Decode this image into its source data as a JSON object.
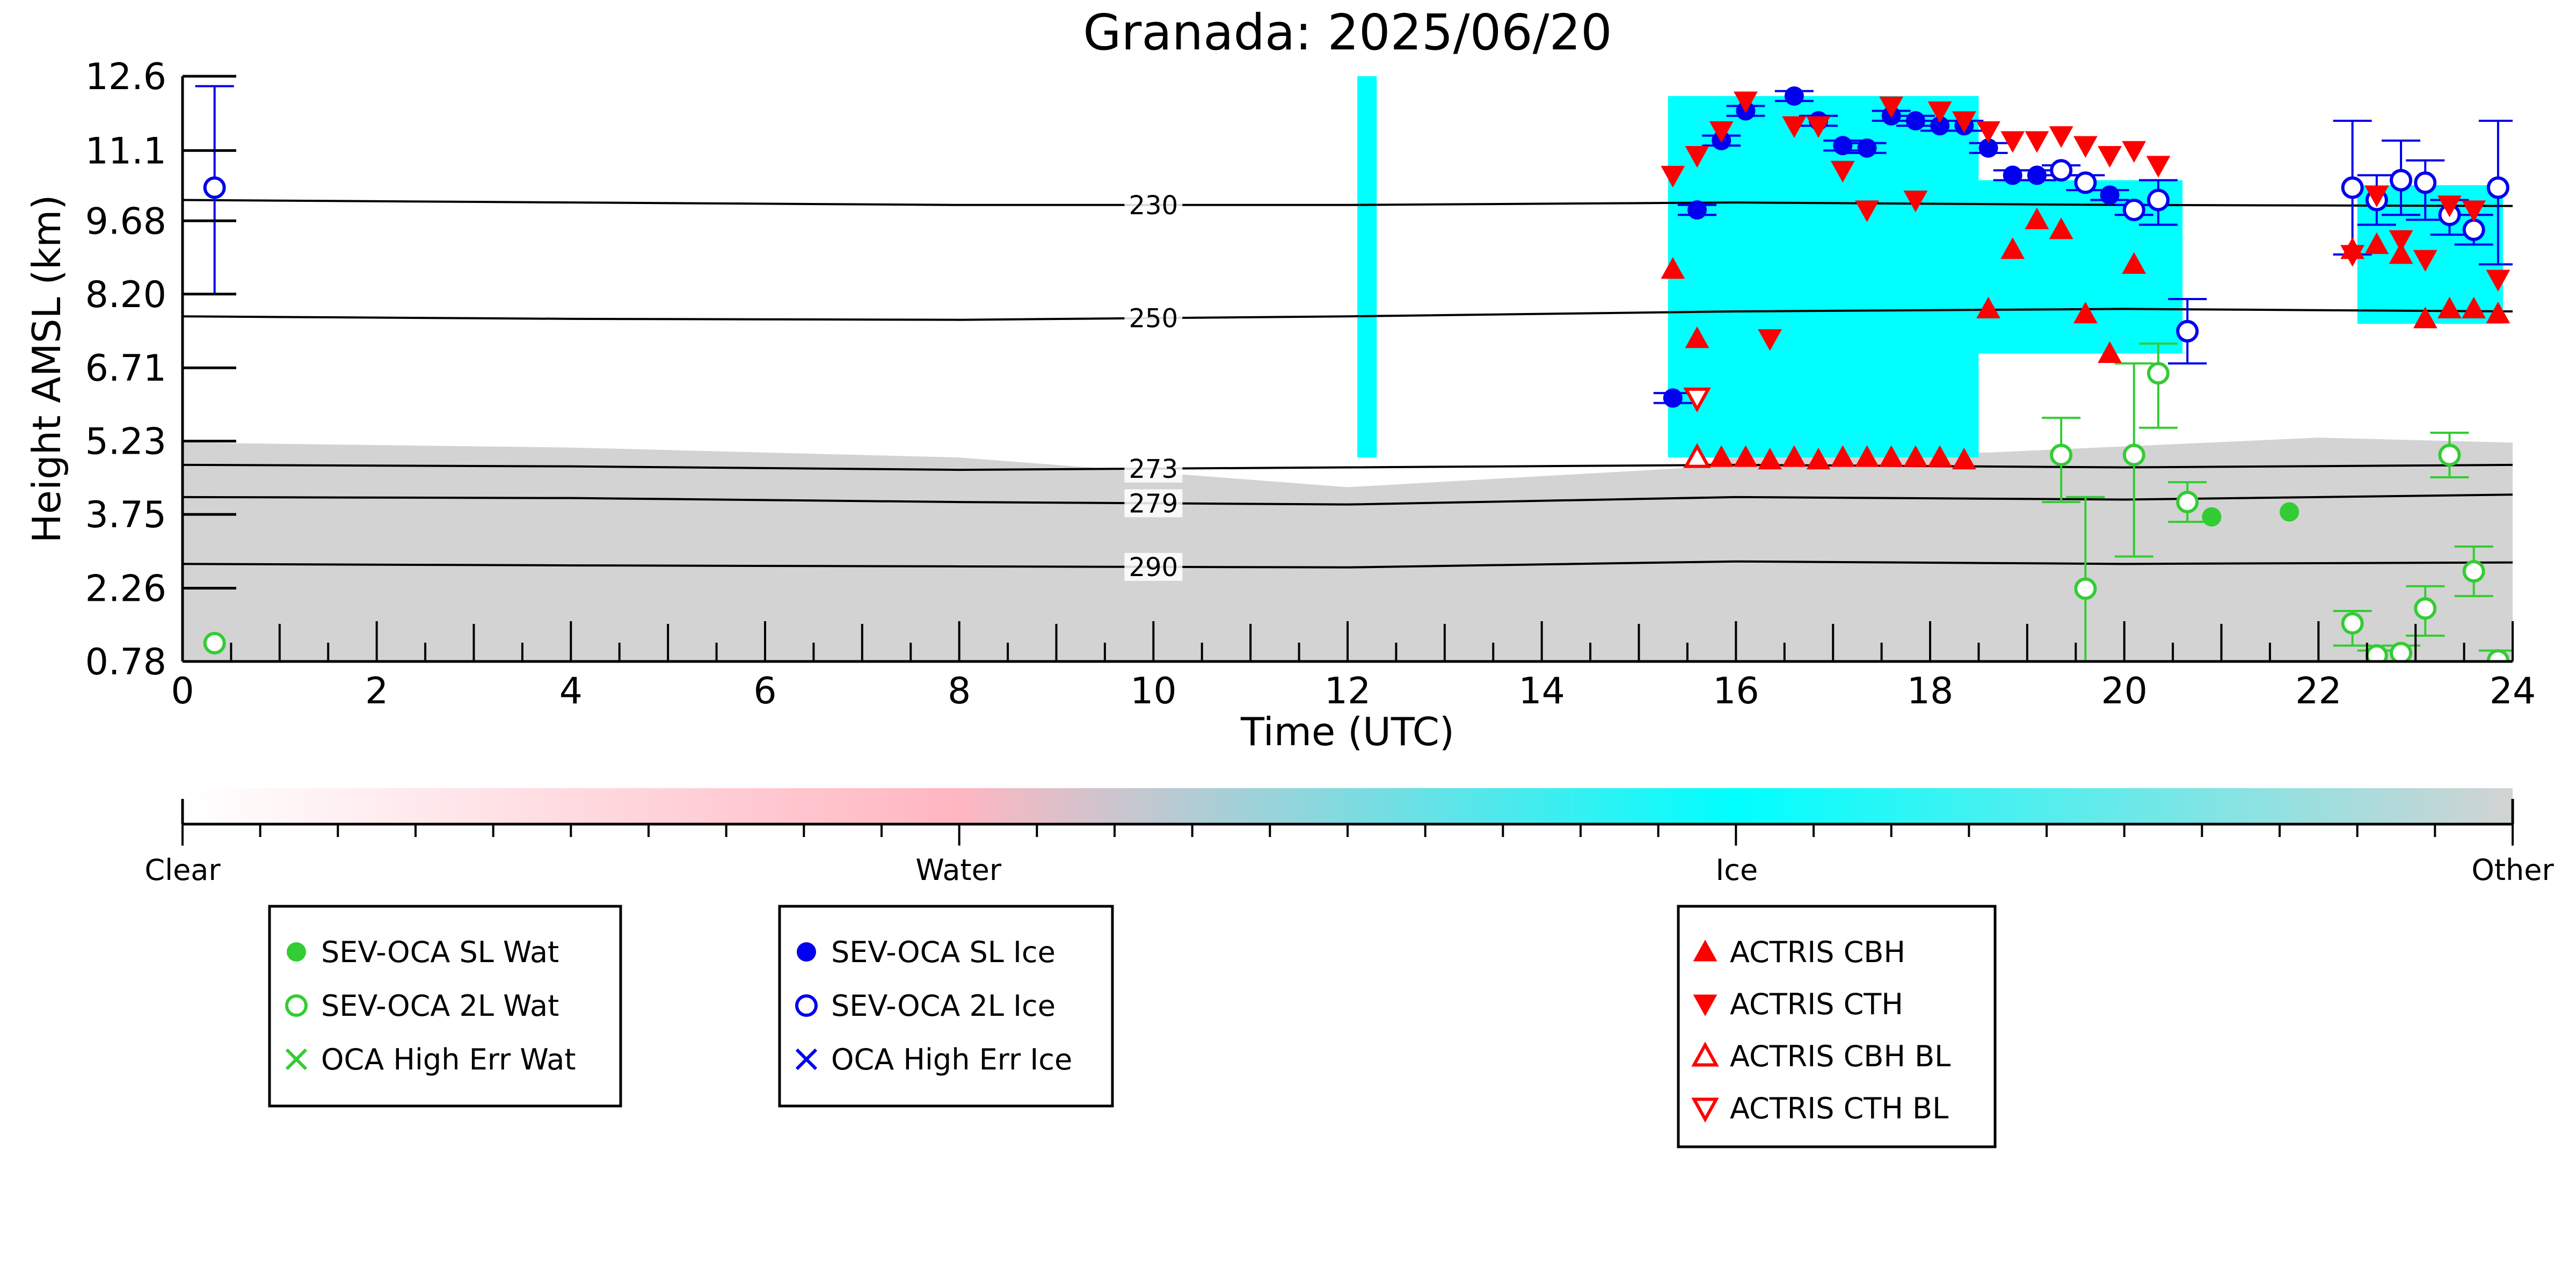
{
  "chart_data": {
    "type": "scatter",
    "title": "Granada: 2025/06/20",
    "xlabel": "Time (UTC)",
    "ylabel": "Height AMSL (km)",
    "xlim": [
      0,
      24
    ],
    "ylim": [
      0.78,
      12.6
    ],
    "xticks": [
      0,
      2,
      4,
      6,
      8,
      10,
      12,
      14,
      16,
      18,
      20,
      22,
      24
    ],
    "yticks": [
      0.78,
      2.26,
      3.75,
      5.23,
      6.71,
      8.2,
      9.68,
      11.1,
      12.6
    ],
    "ytick_labels": [
      "0.78",
      "2.26",
      "3.75",
      "5.23",
      "6.71",
      "8.20",
      "9.68",
      "11.1",
      "12.6"
    ],
    "colors": {
      "clear": "#ffffff",
      "water": "#ffb6c1",
      "ice": "#00ffff",
      "other": "#d3d3d3",
      "oca_water": "#33cc33",
      "oca_ice": "#0000ee",
      "actris": "#ff0000"
    },
    "background": {
      "other_top": [
        [
          0,
          5.2
        ],
        [
          4,
          5.1
        ],
        [
          8,
          4.9
        ],
        [
          10,
          4.6
        ],
        [
          12,
          4.3
        ],
        [
          15.6,
          4.7
        ],
        [
          16,
          5.0
        ],
        [
          18.6,
          5.0
        ],
        [
          22,
          5.3
        ],
        [
          24,
          5.2
        ]
      ],
      "ice_regions": [
        {
          "x": [
            12.1,
            12.3
          ],
          "y": [
            4.9,
            12.6
          ]
        },
        {
          "x": [
            15.3,
            18.5
          ],
          "y": [
            4.9,
            12.2
          ]
        },
        {
          "x": [
            18.5,
            20.6
          ],
          "y": [
            7.0,
            10.5
          ]
        },
        {
          "x": [
            22.4,
            23.9
          ],
          "y": [
            7.6,
            10.4
          ]
        }
      ]
    },
    "contours": [
      {
        "label": "230",
        "x": [
          0,
          4,
          8,
          12,
          16,
          20,
          24
        ],
        "y": [
          10.1,
          10.05,
          10.0,
          10.0,
          10.05,
          10.0,
          9.98
        ]
      },
      {
        "label": "250",
        "x": [
          0,
          4,
          8,
          12,
          16,
          20,
          24
        ],
        "y": [
          7.75,
          7.7,
          7.68,
          7.75,
          7.85,
          7.9,
          7.85
        ]
      },
      {
        "label": "273",
        "x": [
          0,
          4,
          8,
          12,
          16,
          20,
          24
        ],
        "y": [
          4.75,
          4.72,
          4.65,
          4.7,
          4.75,
          4.7,
          4.75
        ]
      },
      {
        "label": "279",
        "x": [
          0,
          4,
          8,
          12,
          16,
          20,
          24
        ],
        "y": [
          4.1,
          4.08,
          4.0,
          3.95,
          4.1,
          4.05,
          4.15
        ]
      },
      {
        "label": "290",
        "x": [
          0,
          4,
          8,
          12,
          16,
          20,
          24
        ],
        "y": [
          2.75,
          2.72,
          2.7,
          2.68,
          2.8,
          2.75,
          2.78
        ]
      }
    ],
    "series": [
      {
        "name": "SEV-OCA SL Wat",
        "marker": "circle-filled",
        "color": "#33cc33",
        "x": [
          20.9,
          21.7
        ],
        "y": [
          3.7,
          3.8
        ]
      },
      {
        "name": "SEV-OCA 2L Wat",
        "marker": "circle-open",
        "color": "#33cc33",
        "x": [
          0.33,
          19.35,
          19.6,
          20.1,
          20.35,
          20.65,
          22.35,
          22.6,
          22.85,
          23.1,
          23.35,
          23.6,
          23.85
        ],
        "y": [
          1.15,
          4.95,
          2.25,
          4.95,
          6.6,
          4.0,
          1.55,
          0.9,
          0.95,
          1.85,
          4.95,
          2.6,
          0.8
        ],
        "err_low": [
          null,
          4.0,
          0.78,
          2.9,
          5.5,
          3.6,
          1.1,
          0.78,
          0.78,
          1.3,
          4.5,
          2.1,
          0.78
        ],
        "err_high": [
          null,
          5.7,
          4.1,
          6.8,
          7.2,
          4.4,
          1.8,
          1.0,
          1.1,
          2.3,
          5.4,
          3.1,
          1.0
        ]
      },
      {
        "name": "OCA High Err Wat",
        "marker": "x",
        "color": "#33cc33",
        "x": [],
        "y": []
      },
      {
        "name": "SEV-OCA SL Ice",
        "marker": "circle-filled",
        "color": "#0000ee",
        "x": [
          15.35,
          15.6,
          15.85,
          16.1,
          16.6,
          16.85,
          17.1,
          17.35,
          17.6,
          17.85,
          18.1,
          18.35,
          18.6,
          18.85,
          19.1,
          19.85
        ],
        "y": [
          6.1,
          9.9,
          11.3,
          11.9,
          12.2,
          11.7,
          11.2,
          11.15,
          11.8,
          11.7,
          11.6,
          11.6,
          11.15,
          10.6,
          10.6,
          10.2
        ],
        "err_low": [
          6.0,
          9.8,
          11.2,
          11.8,
          12.1,
          11.6,
          11.1,
          11.05,
          11.7,
          11.6,
          11.5,
          11.5,
          11.05,
          10.5,
          10.5,
          10.1
        ],
        "err_high": [
          6.2,
          10.0,
          11.4,
          12.0,
          12.3,
          11.8,
          11.3,
          11.25,
          11.9,
          11.8,
          11.7,
          11.7,
          11.25,
          10.7,
          10.7,
          10.3
        ]
      },
      {
        "name": "SEV-OCA 2L Ice",
        "marker": "circle-open",
        "color": "#0000ee",
        "x": [
          0.33,
          19.35,
          19.6,
          20.1,
          20.35,
          20.65,
          22.35,
          22.6,
          22.85,
          23.1,
          23.35,
          23.6,
          23.85
        ],
        "y": [
          10.35,
          10.7,
          10.45,
          9.9,
          10.1,
          7.45,
          10.35,
          10.1,
          10.5,
          10.45,
          9.8,
          9.5,
          10.35
        ],
        "err_low": [
          8.2,
          10.6,
          10.3,
          9.8,
          9.6,
          6.8,
          9.0,
          9.6,
          9.8,
          9.7,
          9.4,
          9.2,
          8.8
        ],
        "err_high": [
          12.4,
          10.8,
          10.6,
          10.0,
          10.5,
          8.1,
          11.7,
          10.6,
          11.3,
          10.9,
          10.1,
          9.8,
          11.7
        ]
      },
      {
        "name": "OCA High Err Ice",
        "marker": "x",
        "color": "#0000ee",
        "x": [],
        "y": []
      },
      {
        "name": "ACTRIS CBH",
        "marker": "triangle-up-filled",
        "color": "#ff0000",
        "x": [
          15.35,
          15.6,
          15.85,
          16.1,
          16.35,
          16.6,
          16.85,
          17.1,
          17.35,
          17.6,
          17.85,
          18.1,
          18.35,
          18.6,
          18.85,
          19.1,
          19.35,
          19.6,
          19.85,
          20.1,
          22.35,
          22.6,
          22.85,
          23.1,
          23.35,
          23.6,
          23.85
        ],
        "y": [
          8.7,
          7.3,
          4.9,
          4.9,
          4.85,
          4.9,
          4.85,
          4.9,
          4.9,
          4.9,
          4.9,
          4.9,
          4.85,
          7.9,
          9.1,
          9.7,
          9.5,
          7.8,
          7.0,
          8.8,
          9.1,
          9.2,
          9.0,
          7.7,
          7.9,
          7.9,
          7.8
        ]
      },
      {
        "name": "ACTRIS CTH",
        "marker": "triangle-down-filled",
        "color": "#ff0000",
        "x": [
          15.35,
          15.6,
          15.85,
          16.1,
          16.35,
          16.6,
          16.85,
          17.1,
          17.35,
          17.6,
          17.85,
          18.1,
          18.35,
          18.6,
          18.85,
          19.1,
          19.35,
          19.6,
          19.85,
          20.1,
          20.35,
          22.35,
          22.6,
          22.85,
          23.1,
          23.35,
          23.6,
          23.85
        ],
        "y": [
          10.6,
          11.0,
          11.5,
          12.1,
          7.3,
          11.6,
          11.6,
          10.7,
          9.9,
          12.0,
          10.1,
          11.9,
          11.7,
          11.5,
          11.3,
          11.3,
          11.4,
          11.2,
          11.0,
          11.1,
          10.8,
          9.0,
          10.2,
          9.3,
          8.9,
          10.0,
          9.9,
          8.5
        ]
      },
      {
        "name": "ACTRIS CBH BL",
        "marker": "triangle-up-open",
        "color": "#ff0000",
        "x": [
          15.6
        ],
        "y": [
          4.9
        ]
      },
      {
        "name": "ACTRIS CTH BL",
        "marker": "triangle-down-open",
        "color": "#ff0000",
        "x": [
          15.6
        ],
        "y": [
          6.1
        ]
      }
    ],
    "colorbar": {
      "labels": [
        "Clear",
        "Water",
        "Ice",
        "Other"
      ],
      "stops": [
        0,
        0.333,
        0.667,
        1.0
      ],
      "colors": [
        "#ffffff",
        "#ffb6c1",
        "#00ffff",
        "#d3d3d3"
      ]
    },
    "legend": [
      {
        "placement": "bottom-left",
        "items": [
          "SEV-OCA SL Wat",
          "SEV-OCA 2L Wat",
          "OCA High Err Wat"
        ]
      },
      {
        "placement": "bottom-center",
        "items": [
          "SEV-OCA SL Ice",
          "SEV-OCA 2L Ice",
          "OCA High Err Ice"
        ]
      },
      {
        "placement": "bottom-right",
        "items": [
          "ACTRIS CBH",
          "ACTRIS CTH",
          "ACTRIS CBH BL",
          "ACTRIS CTH BL"
        ]
      }
    ]
  }
}
